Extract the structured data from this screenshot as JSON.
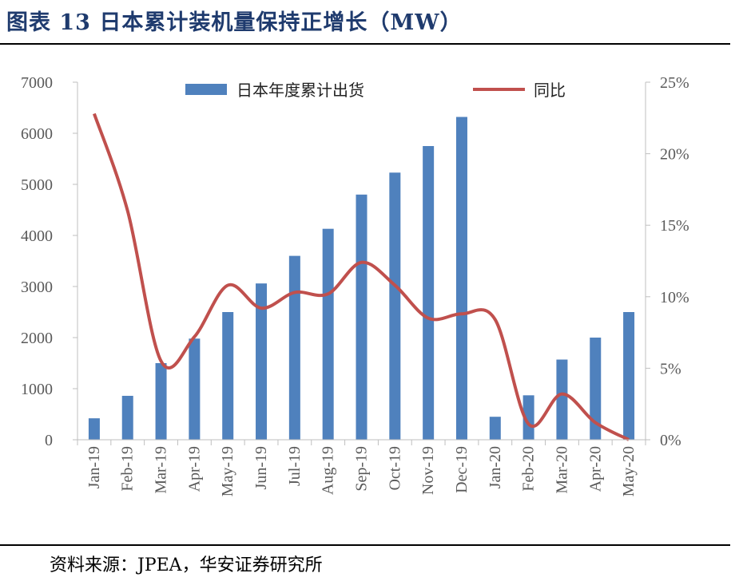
{
  "title": "图表 13 日本累计装机量保持正增长（MW）",
  "source": "资料来源：JPEA，华安证券研究所",
  "colors": {
    "bar": "#4F81BD",
    "line": "#C0504D",
    "title": "#1f3b6e",
    "axis_text": "#595959"
  },
  "chart_data": {
    "type": "bar+line",
    "categories": [
      "Jan-19",
      "Feb-19",
      "Mar-19",
      "Apr-19",
      "May-19",
      "Jun-19",
      "Jul-19",
      "Aug-19",
      "Sep-19",
      "Oct-19",
      "Nov-19",
      "Dec-19",
      "Jan-20",
      "Feb-20",
      "Mar-20",
      "Apr-20",
      "May-20"
    ],
    "series": [
      {
        "name": "日本年度累计出货",
        "type": "bar",
        "axis": "left",
        "values": [
          420,
          860,
          1500,
          1980,
          2500,
          3060,
          3600,
          4130,
          4800,
          5230,
          5750,
          6320,
          450,
          870,
          1570,
          2000,
          2500
        ]
      },
      {
        "name": "同比",
        "type": "line",
        "axis": "right",
        "values": [
          0.228,
          0.16,
          0.055,
          0.072,
          0.108,
          0.092,
          0.103,
          0.102,
          0.124,
          0.108,
          0.085,
          0.088,
          0.084,
          0.011,
          0.032,
          0.012,
          0.0
        ]
      }
    ],
    "y_left": {
      "min": 0,
      "max": 7000,
      "ticks": [
        "0",
        "1000",
        "2000",
        "3000",
        "4000",
        "5000",
        "6000",
        "7000"
      ]
    },
    "y_right": {
      "min": 0,
      "max": 0.25,
      "ticks": [
        "0%",
        "5%",
        "10%",
        "15%",
        "20%",
        "25%"
      ]
    },
    "legend": [
      "日本年度累计出货",
      "同比"
    ],
    "legend_position": "top-center",
    "grid": false
  }
}
